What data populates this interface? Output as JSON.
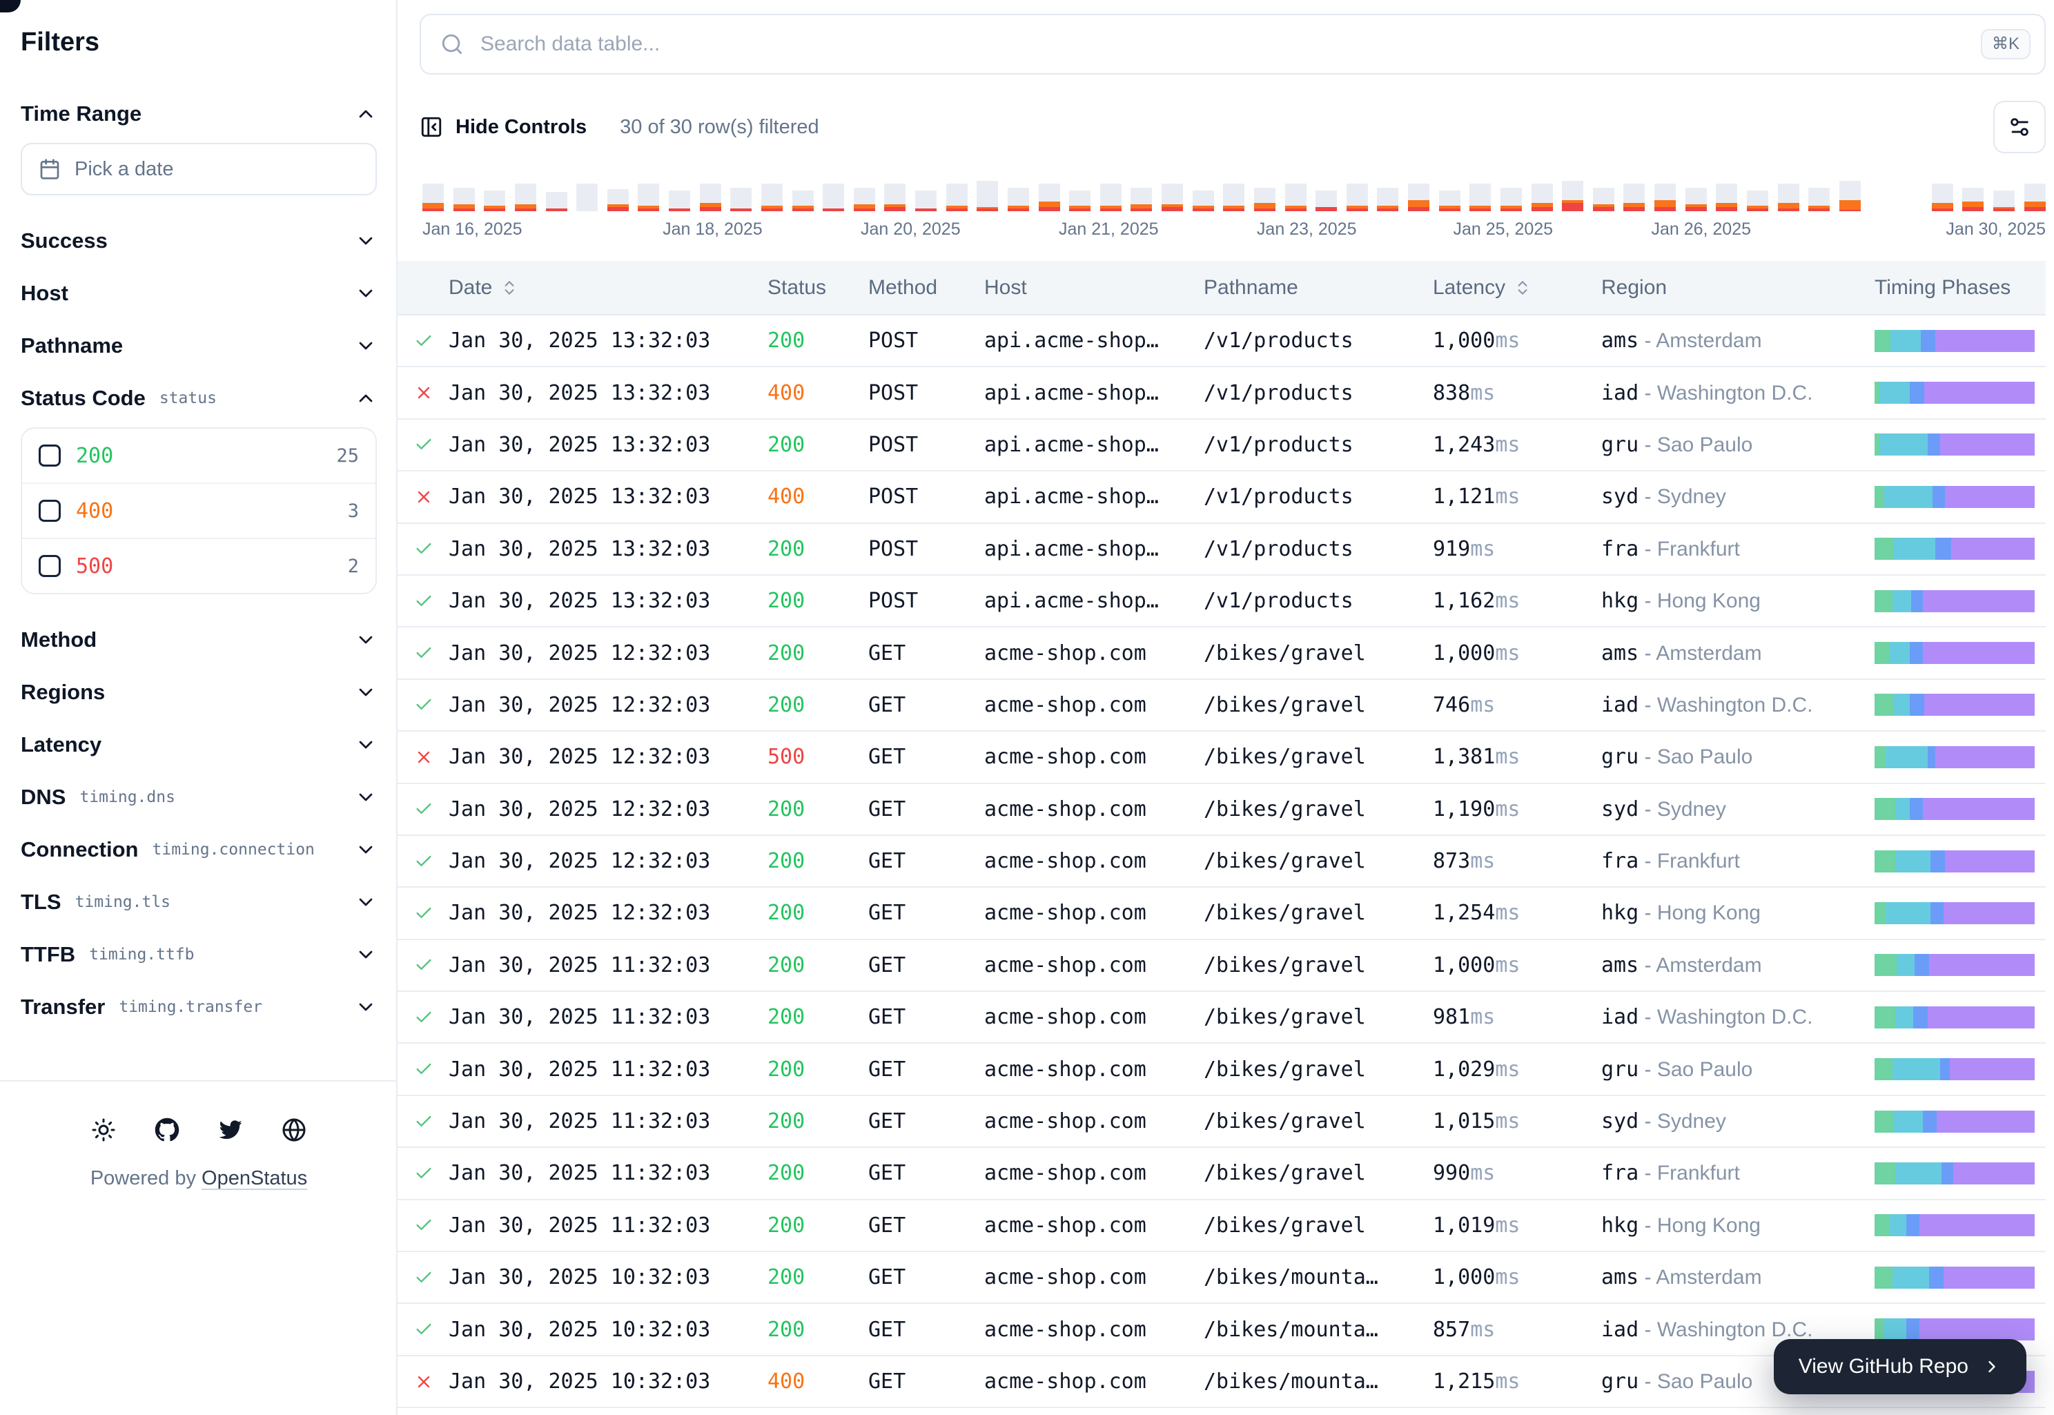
{
  "sidebar": {
    "title": "Filters",
    "sections": [
      {
        "label": "Time Range",
        "expanded": true,
        "control": "date-picker",
        "placeholder": "Pick a date"
      },
      {
        "label": "Success",
        "expanded": false
      },
      {
        "label": "Host",
        "expanded": false
      },
      {
        "label": "Pathname",
        "expanded": false
      },
      {
        "label": "Status Code",
        "code": "status",
        "expanded": true,
        "options": [
          {
            "value": "200",
            "count": "25",
            "color": "#22c55e"
          },
          {
            "value": "400",
            "count": "3",
            "color": "#f97316"
          },
          {
            "value": "500",
            "count": "2",
            "color": "#ef4444"
          }
        ]
      },
      {
        "label": "Method",
        "expanded": false
      },
      {
        "label": "Regions",
        "expanded": false
      },
      {
        "label": "Latency",
        "expanded": false
      },
      {
        "label": "DNS",
        "code": "timing.dns",
        "expanded": false
      },
      {
        "label": "Connection",
        "code": "timing.connection",
        "expanded": false
      },
      {
        "label": "TLS",
        "code": "timing.tls",
        "expanded": false
      },
      {
        "label": "TTFB",
        "code": "timing.ttfb",
        "expanded": false
      },
      {
        "label": "Transfer",
        "code": "timing.transfer",
        "expanded": false
      }
    ],
    "footer": {
      "icons": [
        {
          "icon": "sun",
          "name": "theme-toggle-button"
        },
        {
          "icon": "github",
          "name": "github-link"
        },
        {
          "icon": "twitter",
          "name": "twitter-link"
        },
        {
          "icon": "globe",
          "name": "globe-link"
        }
      ],
      "powered_by": "Powered by",
      "brand": "OpenStatus"
    }
  },
  "toolbar": {
    "search_placeholder": "Search data table...",
    "shortcut": "⌘K",
    "hide_controls_label": "Hide Controls",
    "filtered_label": "30 of 30 row(s) filtered"
  },
  "chart_data": {
    "type": "bar",
    "title": "Requests per time bucket (Jan 16 – Jan 30, 2025)",
    "x_labels": [
      "Jan 16, 2025",
      "Jan 18, 2025",
      "Jan 20, 2025",
      "Jan 21, 2025",
      "Jan 23, 2025",
      "Jan 25, 2025",
      "Jan 26, 2025",
      "Jan 30, 2025"
    ],
    "label_positions_pct": [
      0,
      14.8,
      27.0,
      39.2,
      51.4,
      63.5,
      75.7,
      100
    ],
    "encoding": "bars = [total_height_px, degraded_orange_px, failed_red_px]; max height 22px; [0,0,0] = empty bucket",
    "bars": [
      [
        20,
        4,
        2
      ],
      [
        17,
        3,
        2
      ],
      [
        15,
        2,
        2
      ],
      [
        20,
        3,
        2
      ],
      [
        14,
        0,
        2
      ],
      [
        20,
        0,
        0
      ],
      [
        16,
        2,
        3
      ],
      [
        20,
        2,
        2
      ],
      [
        15,
        0,
        2
      ],
      [
        20,
        3,
        3
      ],
      [
        17,
        0,
        2
      ],
      [
        20,
        2,
        2
      ],
      [
        15,
        2,
        2
      ],
      [
        20,
        0,
        2
      ],
      [
        17,
        3,
        2
      ],
      [
        20,
        2,
        3
      ],
      [
        15,
        0,
        2
      ],
      [
        20,
        2,
        2
      ],
      [
        22,
        1,
        2
      ],
      [
        17,
        2,
        2
      ],
      [
        20,
        4,
        3
      ],
      [
        15,
        2,
        2
      ],
      [
        20,
        2,
        2
      ],
      [
        17,
        3,
        2
      ],
      [
        20,
        2,
        3
      ],
      [
        15,
        2,
        2
      ],
      [
        20,
        2,
        2
      ],
      [
        17,
        4,
        2
      ],
      [
        20,
        2,
        2
      ],
      [
        15,
        0,
        3
      ],
      [
        20,
        2,
        2
      ],
      [
        17,
        2,
        2
      ],
      [
        20,
        5,
        3
      ],
      [
        15,
        2,
        2
      ],
      [
        20,
        2,
        2
      ],
      [
        17,
        2,
        2
      ],
      [
        20,
        3,
        3
      ],
      [
        22,
        2,
        6
      ],
      [
        17,
        2,
        3
      ],
      [
        20,
        3,
        3
      ],
      [
        20,
        5,
        3
      ],
      [
        17,
        2,
        3
      ],
      [
        20,
        3,
        3
      ],
      [
        15,
        2,
        2
      ],
      [
        20,
        4,
        2
      ],
      [
        17,
        2,
        2
      ],
      [
        22,
        7,
        1
      ],
      [
        0,
        0,
        0
      ],
      [
        0,
        0,
        0
      ],
      [
        20,
        4,
        2
      ],
      [
        17,
        4,
        3
      ],
      [
        15,
        1,
        2
      ],
      [
        20,
        4,
        3
      ]
    ]
  },
  "colors": {
    "status": {
      "200": "#22c55e",
      "400": "#f97316",
      "500": "#ef4444"
    },
    "check": "#54c47e",
    "cross": "#ef4444",
    "timeline": {
      "base": "#e9edf3",
      "orange": "#f9741c",
      "red": "#ee4444"
    },
    "phases": [
      "#6fd3a2",
      "#67cbdf",
      "#6b9df8",
      "#b18cf9"
    ]
  },
  "table": {
    "latency_unit": "ms",
    "region_separator": "-",
    "columns": [
      {
        "label": "",
        "key": "check"
      },
      {
        "label": "Date",
        "key": "date",
        "sortable": true
      },
      {
        "label": "Status",
        "key": "status"
      },
      {
        "label": "Method",
        "key": "method"
      },
      {
        "label": "Host",
        "key": "host"
      },
      {
        "label": "Pathname",
        "key": "pathname"
      },
      {
        "label": "Latency",
        "key": "latency",
        "sortable": true
      },
      {
        "label": "Region",
        "key": "region"
      },
      {
        "label": "Timing Phases",
        "key": "timing"
      }
    ],
    "rows": [
      {
        "ok": true,
        "date": "Jan 30, 2025 13:32:03",
        "status": "200",
        "method": "POST",
        "host": "api.acme-shop…",
        "path": "/v1/products",
        "latency": "1,000",
        "region_code": "ams",
        "region_city": "Amsterdam",
        "phases": [
          10,
          19,
          9,
          62
        ]
      },
      {
        "ok": false,
        "date": "Jan 30, 2025 13:32:03",
        "status": "400",
        "method": "POST",
        "host": "api.acme-shop…",
        "path": "/v1/products",
        "latency": "838",
        "region_code": "iad",
        "region_city": "Washington D.C.",
        "phases": [
          3,
          19,
          9,
          69
        ]
      },
      {
        "ok": true,
        "date": "Jan 30, 2025 13:32:03",
        "status": "200",
        "method": "POST",
        "host": "api.acme-shop…",
        "path": "/v1/products",
        "latency": "1,243",
        "region_code": "gru",
        "region_city": "Sao Paulo",
        "phases": [
          3,
          30,
          8,
          59
        ]
      },
      {
        "ok": false,
        "date": "Jan 30, 2025 13:32:03",
        "status": "400",
        "method": "POST",
        "host": "api.acme-shop…",
        "path": "/v1/products",
        "latency": "1,121",
        "region_code": "syd",
        "region_city": "Sydney",
        "phases": [
          6,
          30,
          8,
          56
        ]
      },
      {
        "ok": true,
        "date": "Jan 30, 2025 13:32:03",
        "status": "200",
        "method": "POST",
        "host": "api.acme-shop…",
        "path": "/v1/products",
        "latency": "919",
        "region_code": "fra",
        "region_city": "Frankfurt",
        "phases": [
          12,
          26,
          10,
          52
        ]
      },
      {
        "ok": true,
        "date": "Jan 30, 2025 13:32:03",
        "status": "200",
        "method": "POST",
        "host": "api.acme-shop…",
        "path": "/v1/products",
        "latency": "1,162",
        "region_code": "hkg",
        "region_city": "Hong Kong",
        "phases": [
          11,
          12,
          7,
          70
        ]
      },
      {
        "ok": true,
        "date": "Jan 30, 2025 12:32:03",
        "status": "200",
        "method": "GET",
        "host": "acme-shop.com",
        "path": "/bikes/gravel",
        "latency": "1,000",
        "region_code": "ams",
        "region_city": "Amsterdam",
        "phases": [
          9,
          13,
          8,
          70
        ]
      },
      {
        "ok": true,
        "date": "Jan 30, 2025 12:32:03",
        "status": "200",
        "method": "GET",
        "host": "acme-shop.com",
        "path": "/bikes/gravel",
        "latency": "746",
        "region_code": "iad",
        "region_city": "Washington D.C.",
        "phases": [
          12,
          10,
          9,
          69
        ]
      },
      {
        "ok": false,
        "date": "Jan 30, 2025 12:32:03",
        "status": "500",
        "method": "GET",
        "host": "acme-shop.com",
        "path": "/bikes/gravel",
        "latency": "1,381",
        "region_code": "gru",
        "region_city": "Sao Paulo",
        "phases": [
          7,
          26,
          5,
          62
        ]
      },
      {
        "ok": true,
        "date": "Jan 30, 2025 12:32:03",
        "status": "200",
        "method": "GET",
        "host": "acme-shop.com",
        "path": "/bikes/gravel",
        "latency": "1,190",
        "region_code": "syd",
        "region_city": "Sydney",
        "phases": [
          13,
          9,
          8,
          70
        ]
      },
      {
        "ok": true,
        "date": "Jan 30, 2025 12:32:03",
        "status": "200",
        "method": "GET",
        "host": "acme-shop.com",
        "path": "/bikes/gravel",
        "latency": "873",
        "region_code": "fra",
        "region_city": "Frankfurt",
        "phases": [
          13,
          22,
          9,
          56
        ]
      },
      {
        "ok": true,
        "date": "Jan 30, 2025 12:32:03",
        "status": "200",
        "method": "GET",
        "host": "acme-shop.com",
        "path": "/bikes/gravel",
        "latency": "1,254",
        "region_code": "hkg",
        "region_city": "Hong Kong",
        "phases": [
          7,
          28,
          8,
          57
        ]
      },
      {
        "ok": true,
        "date": "Jan 30, 2025 11:32:03",
        "status": "200",
        "method": "GET",
        "host": "acme-shop.com",
        "path": "/bikes/gravel",
        "latency": "1,000",
        "region_code": "ams",
        "region_city": "Amsterdam",
        "phases": [
          14,
          11,
          9,
          66
        ]
      },
      {
        "ok": true,
        "date": "Jan 30, 2025 11:32:03",
        "status": "200",
        "method": "GET",
        "host": "acme-shop.com",
        "path": "/bikes/gravel",
        "latency": "981",
        "region_code": "iad",
        "region_city": "Washington D.C.",
        "phases": [
          13,
          11,
          9,
          67
        ]
      },
      {
        "ok": true,
        "date": "Jan 30, 2025 11:32:03",
        "status": "200",
        "method": "GET",
        "host": "acme-shop.com",
        "path": "/bikes/gravel",
        "latency": "1,029",
        "region_code": "gru",
        "region_city": "Sao Paulo",
        "phases": [
          11,
          30,
          6,
          53
        ]
      },
      {
        "ok": true,
        "date": "Jan 30, 2025 11:32:03",
        "status": "200",
        "method": "GET",
        "host": "acme-shop.com",
        "path": "/bikes/gravel",
        "latency": "1,015",
        "region_code": "syd",
        "region_city": "Sydney",
        "phases": [
          12,
          18,
          9,
          61
        ]
      },
      {
        "ok": true,
        "date": "Jan 30, 2025 11:32:03",
        "status": "200",
        "method": "GET",
        "host": "acme-shop.com",
        "path": "/bikes/gravel",
        "latency": "990",
        "region_code": "fra",
        "region_city": "Frankfurt",
        "phases": [
          13,
          29,
          7,
          51
        ]
      },
      {
        "ok": true,
        "date": "Jan 30, 2025 11:32:03",
        "status": "200",
        "method": "GET",
        "host": "acme-shop.com",
        "path": "/bikes/gravel",
        "latency": "1,019",
        "region_code": "hkg",
        "region_city": "Hong Kong",
        "phases": [
          9,
          11,
          8,
          72
        ]
      },
      {
        "ok": true,
        "date": "Jan 30, 2025 10:32:03",
        "status": "200",
        "method": "GET",
        "host": "acme-shop.com",
        "path": "/bikes/mounta…",
        "latency": "1,000",
        "region_code": "ams",
        "region_city": "Amsterdam",
        "phases": [
          11,
          23,
          9,
          57
        ]
      },
      {
        "ok": true,
        "date": "Jan 30, 2025 10:32:03",
        "status": "200",
        "method": "GET",
        "host": "acme-shop.com",
        "path": "/bikes/mounta…",
        "latency": "857",
        "region_code": "iad",
        "region_city": "Washington D.C.",
        "phases": [
          6,
          14,
          8,
          72
        ]
      },
      {
        "ok": false,
        "date": "Jan 30, 2025 10:32:03",
        "status": "400",
        "method": "GET",
        "host": "acme-shop.com",
        "path": "/bikes/mounta…",
        "latency": "1,215",
        "region_code": "gru",
        "region_city": "Sao Paulo",
        "phases": [
          4,
          26,
          8,
          62
        ]
      }
    ]
  },
  "fab": {
    "label": "View GitHub Repo"
  }
}
